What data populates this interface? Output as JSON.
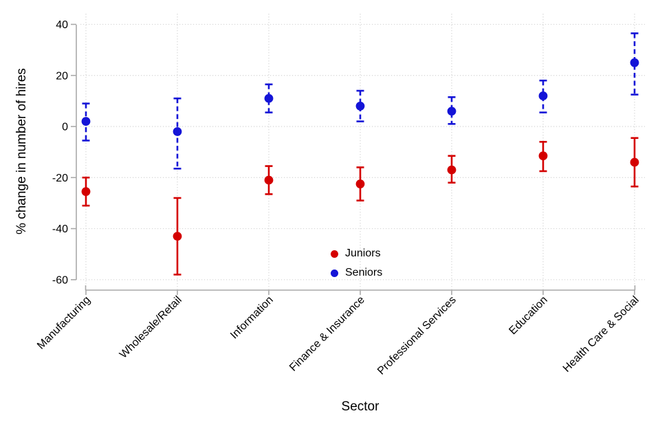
{
  "figure": {
    "y_axis_title": "% change in number of hires",
    "x_axis_title": "Sector",
    "legend": {
      "juniors": "Juniors",
      "seniors": "Seniors"
    },
    "colors": {
      "juniors": "#d40000",
      "seniors": "#1414d7",
      "axis": "#a9a9a9",
      "grid": "#d4d4d4",
      "background": "#ffffff"
    }
  },
  "chart_data": {
    "type": "scatter",
    "subtype": "point-estimates-with-confidence-intervals",
    "title": "",
    "xlabel": "Sector",
    "ylabel": "% change in number of hires",
    "categories": [
      "Manufacturing",
      "Wholesale/Retail",
      "Information",
      "Finance & Insurance",
      "Professional Services",
      "Education",
      "Health Care & Social"
    ],
    "yticks": [
      40,
      20,
      0,
      -20,
      -40,
      -60
    ],
    "ylim": [
      -64,
      44
    ],
    "grid": "dotted-both-axes",
    "legend_position": "inside-bottom-center",
    "series": [
      {
        "name": "Juniors",
        "color": "#d40000",
        "marker": "circle",
        "errorbar_style": "solid",
        "values": [
          -25.5,
          -43,
          -21,
          -22.5,
          -17,
          -11.5,
          -14
        ],
        "ci_low": [
          -31,
          -58,
          -26.5,
          -29,
          -22,
          -17.5,
          -23.5
        ],
        "ci_high": [
          -20,
          -28,
          -15.5,
          -16,
          -11.5,
          -6,
          -4.5
        ]
      },
      {
        "name": "Seniors",
        "color": "#1414d7",
        "marker": "circle",
        "errorbar_style": "dashed",
        "values": [
          2,
          -2,
          11,
          8,
          6,
          12,
          25
        ],
        "ci_low": [
          -5.5,
          -16.5,
          5.5,
          2,
          1,
          5.5,
          12.5
        ],
        "ci_high": [
          9,
          11,
          16.5,
          14,
          11.5,
          18,
          36.5
        ]
      }
    ]
  }
}
